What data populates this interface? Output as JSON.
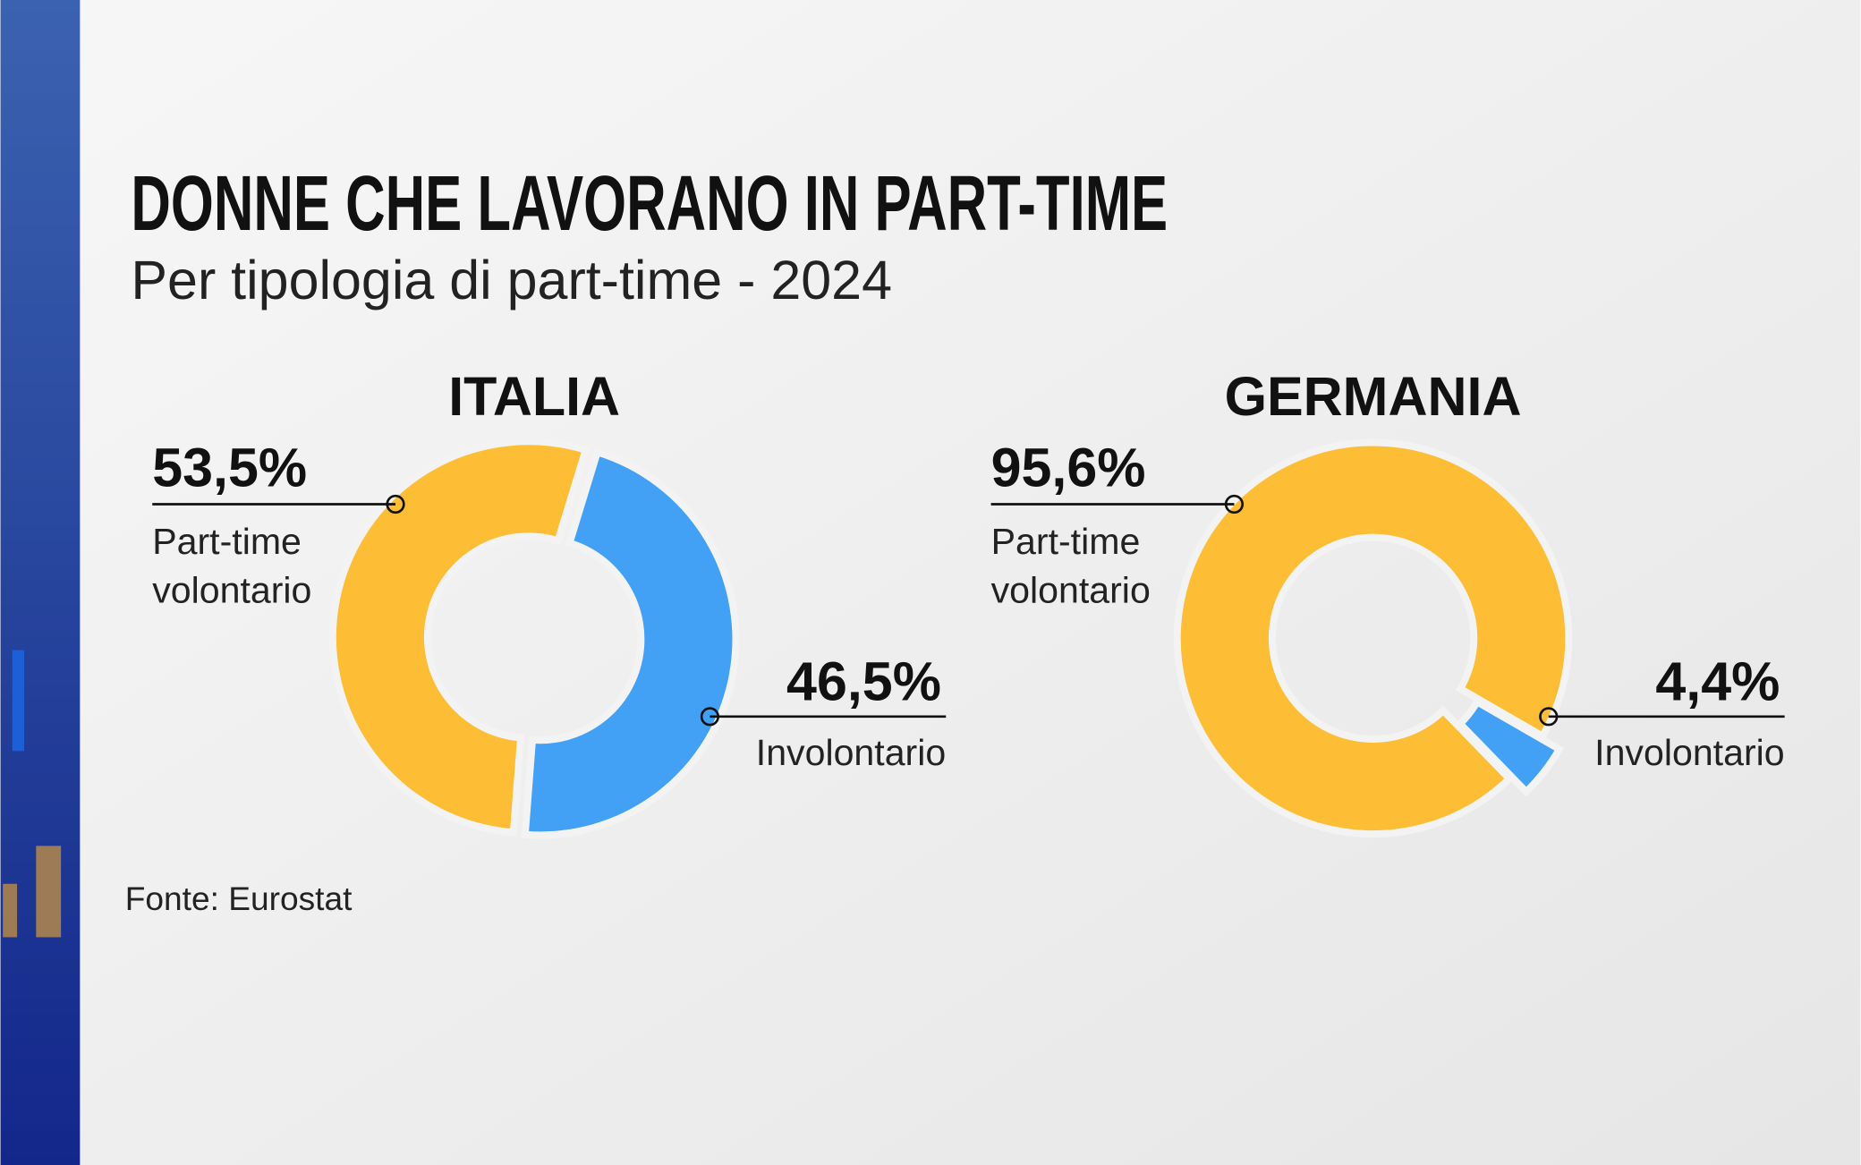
{
  "header": {
    "title": "DONNE CHE LAVORANO IN PART-TIME",
    "subtitle": "Per tipologia di part-time - 2024"
  },
  "source": "Fonte: Eurostat",
  "chart_data": [
    {
      "type": "donut",
      "title": "ITALIA",
      "categories": [
        "Part-time volontario",
        "Involontario"
      ],
      "values": [
        53.5,
        46.5
      ],
      "value_labels": [
        "53,5%",
        "46,5%"
      ],
      "colors": [
        "#fdbd35",
        "#42a1f5"
      ]
    },
    {
      "type": "donut",
      "title": "GERMANIA",
      "categories": [
        "Part-time volontario",
        "Involontario"
      ],
      "values": [
        95.6,
        4.4
      ],
      "value_labels": [
        "95,6%",
        "4,4%"
      ],
      "colors": [
        "#fdbd35",
        "#42a1f5"
      ]
    }
  ]
}
